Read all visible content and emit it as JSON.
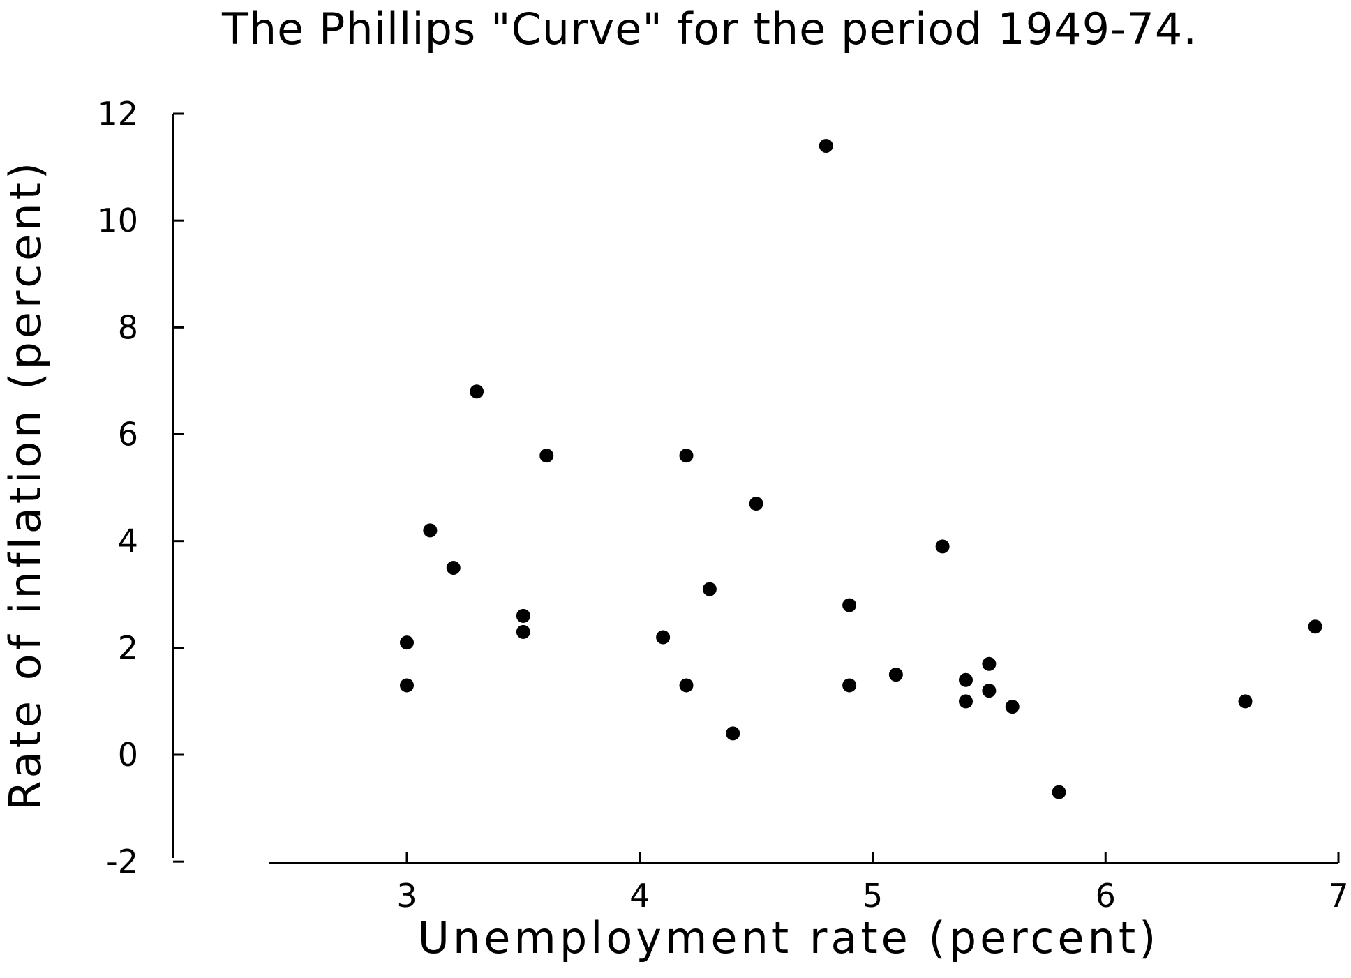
{
  "chart_data": {
    "type": "scatter",
    "title": "The Phillips \"Curve\" for the period 1949-74.",
    "xlabel": "Unemployment rate (percent)",
    "ylabel": "Rate of inflation (percent)",
    "xlim": [
      2.5,
      7
    ],
    "ylim": [
      -2,
      12
    ],
    "x_ticks": [
      3,
      4,
      5,
      6,
      7
    ],
    "y_ticks": [
      -2,
      0,
      2,
      4,
      6,
      8,
      10,
      12
    ],
    "x_tick_labels": [
      "3",
      "4",
      "5",
      "6",
      "7"
    ],
    "y_tick_labels": [
      "-2",
      "0",
      "2",
      "4",
      "6",
      "8",
      "10",
      "12"
    ],
    "grid": false,
    "legend": "none",
    "series": [
      {
        "points": [
          {
            "x": 3.0,
            "y": 2.1
          },
          {
            "x": 3.0,
            "y": 1.3
          },
          {
            "x": 3.1,
            "y": 4.2
          },
          {
            "x": 3.2,
            "y": 3.5
          },
          {
            "x": 3.3,
            "y": 6.8
          },
          {
            "x": 3.5,
            "y": 2.6
          },
          {
            "x": 3.5,
            "y": 2.3
          },
          {
            "x": 3.6,
            "y": 5.6
          },
          {
            "x": 4.1,
            "y": 2.2
          },
          {
            "x": 4.2,
            "y": 5.6
          },
          {
            "x": 4.2,
            "y": 1.3
          },
          {
            "x": 4.3,
            "y": 3.1
          },
          {
            "x": 4.4,
            "y": 0.4
          },
          {
            "x": 4.5,
            "y": 4.7
          },
          {
            "x": 4.8,
            "y": 11.4
          },
          {
            "x": 4.9,
            "y": 2.8
          },
          {
            "x": 4.9,
            "y": 1.3
          },
          {
            "x": 5.1,
            "y": 1.5
          },
          {
            "x": 5.3,
            "y": 3.9
          },
          {
            "x": 5.4,
            "y": 1.4
          },
          {
            "x": 5.4,
            "y": 1.0
          },
          {
            "x": 5.5,
            "y": 1.7
          },
          {
            "x": 5.5,
            "y": 1.2
          },
          {
            "x": 5.6,
            "y": 0.9
          },
          {
            "x": 5.8,
            "y": -0.7
          },
          {
            "x": 6.6,
            "y": 1.0
          },
          {
            "x": 6.9,
            "y": 2.4
          }
        ]
      }
    ]
  }
}
